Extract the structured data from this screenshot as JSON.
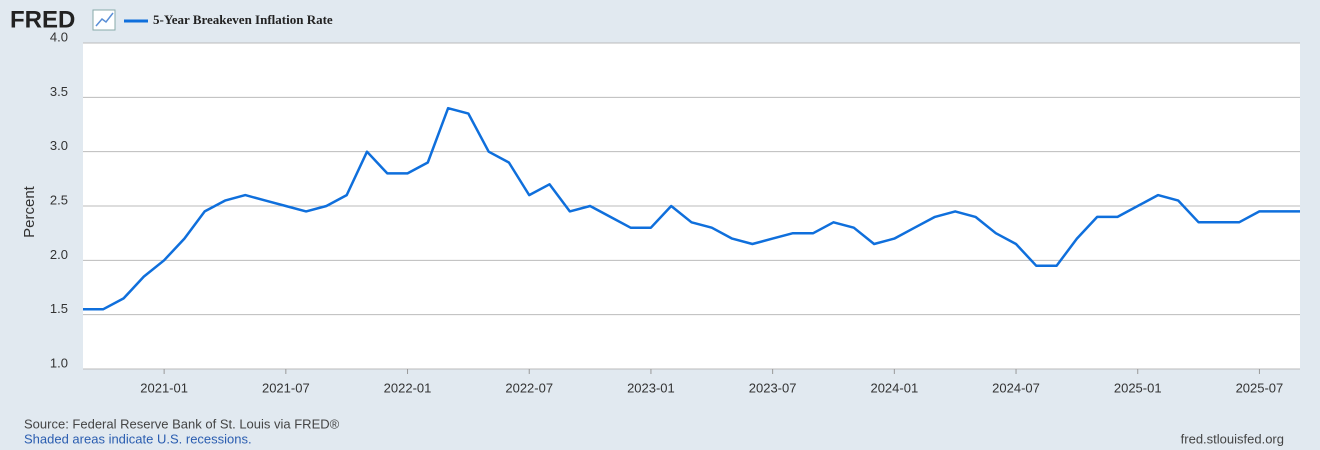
{
  "logo": "FRED",
  "chart_data": {
    "type": "line",
    "y_label": "Percent",
    "x": [
      "2020-09",
      "2020-10",
      "2020-11",
      "2020-12",
      "2021-01",
      "2021-02",
      "2021-03",
      "2021-04",
      "2021-05",
      "2021-06",
      "2021-07",
      "2021-08",
      "2021-09",
      "2021-10",
      "2021-11",
      "2021-12",
      "2022-01",
      "2022-02",
      "2022-03",
      "2022-04",
      "2022-05",
      "2022-06",
      "2022-07",
      "2022-08",
      "2022-09",
      "2022-10",
      "2022-11",
      "2022-12",
      "2023-01",
      "2023-02",
      "2023-03",
      "2023-04",
      "2023-05",
      "2023-06",
      "2023-07",
      "2023-08",
      "2023-09",
      "2023-10",
      "2023-11",
      "2023-12",
      "2024-01",
      "2024-02",
      "2024-03",
      "2024-04",
      "2024-05",
      "2024-06",
      "2024-07",
      "2024-08",
      "2024-09",
      "2024-10",
      "2024-11",
      "2024-12",
      "2025-01",
      "2025-02",
      "2025-03",
      "2025-04",
      "2025-05",
      "2025-06",
      "2025-07",
      "2025-08",
      "2025-09"
    ],
    "series": [
      {
        "name": "5-Year Breakeven Inflation Rate",
        "color": "#0f6fdc",
        "values": [
          1.55,
          1.55,
          1.65,
          1.85,
          2.0,
          2.2,
          2.45,
          2.55,
          2.6,
          2.55,
          2.5,
          2.45,
          2.5,
          2.6,
          3.0,
          2.8,
          2.8,
          2.9,
          3.4,
          3.35,
          3.0,
          2.9,
          2.6,
          2.7,
          2.45,
          2.5,
          2.4,
          2.3,
          2.3,
          2.5,
          2.35,
          2.3,
          2.2,
          2.15,
          2.2,
          2.25,
          2.25,
          2.35,
          2.3,
          2.15,
          2.2,
          2.3,
          2.4,
          2.45,
          2.4,
          2.25,
          2.15,
          1.95,
          1.95,
          2.2,
          2.4,
          2.4,
          2.5,
          2.6,
          2.55,
          2.35,
          2.35,
          2.35,
          2.45,
          2.45,
          2.45
        ]
      }
    ],
    "xlim": [
      "2020-09",
      "2025-09"
    ],
    "xticks": [
      "2021-01",
      "2021-07",
      "2022-01",
      "2022-07",
      "2023-01",
      "2023-07",
      "2024-01",
      "2024-07",
      "2025-01",
      "2025-07"
    ],
    "ylim": [
      1,
      4
    ],
    "yticks": [
      {
        "value": 1,
        "label": "1.0"
      },
      1.5,
      {
        "value": 2,
        "label": "2.0"
      },
      2.5,
      {
        "value": 3,
        "label": "3.0"
      },
      3.5,
      {
        "value": 4,
        "label": "4.0"
      }
    ],
    "grid": true
  },
  "footer": {
    "source": "Source: Federal Reserve Bank of St. Louis via FRED®",
    "note": "Shaded areas indicate U.S. recessions.",
    "url": "fred.stlouisfed.org"
  }
}
